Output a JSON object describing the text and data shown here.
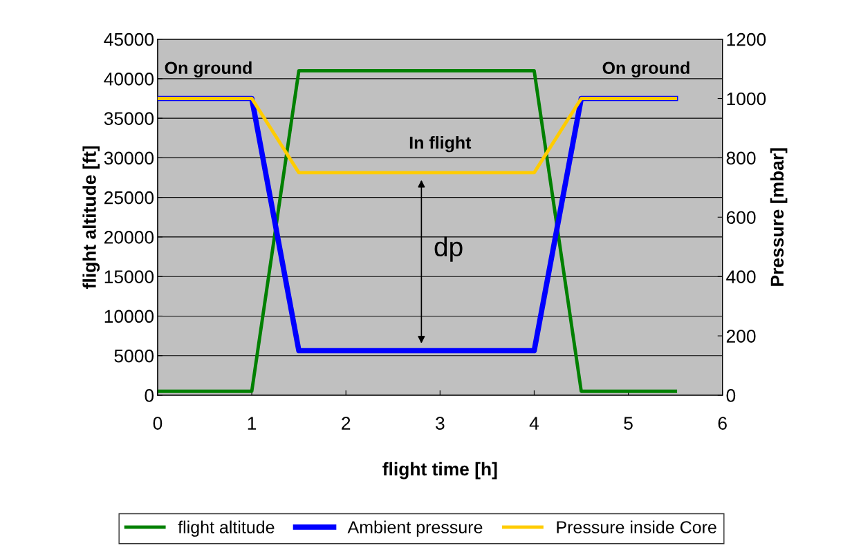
{
  "chart_data": {
    "type": "line",
    "xlabel": "flight time [h]",
    "ylabel": "flight altitude [ft]",
    "y2label": "Pressure [mbar]",
    "x": [
      0,
      1,
      1.5,
      4,
      4.5,
      5.5
    ],
    "series": [
      {
        "name": "flight altitude",
        "color": "#008000",
        "values": [
          500,
          500,
          41000,
          41000,
          500,
          500
        ]
      },
      {
        "name": "Ambient pressure",
        "color": "#0000ff",
        "axis": "y2",
        "values": [
          1000,
          1000,
          150,
          150,
          1000,
          1000
        ]
      },
      {
        "name": "Pressure inside Core",
        "color": "#ffcc00",
        "axis": "y2",
        "values": [
          1000,
          1000,
          750,
          750,
          1000,
          1000
        ]
      }
    ],
    "xlim": [
      0,
      6
    ],
    "xticks": [
      0,
      1,
      2,
      3,
      4,
      5,
      6
    ],
    "ylim": [
      0,
      45000
    ],
    "yticks": [
      0,
      5000,
      10000,
      15000,
      20000,
      25000,
      30000,
      35000,
      40000,
      45000
    ],
    "y2lim": [
      0,
      1200
    ],
    "y2ticks": [
      0,
      200,
      400,
      600,
      800,
      1000,
      1200
    ],
    "annotations": [
      "On ground",
      "On ground",
      "In flight",
      "dp"
    ],
    "grid": "y",
    "legend": "bottom",
    "marker": "none",
    "line_style": "solid"
  }
}
